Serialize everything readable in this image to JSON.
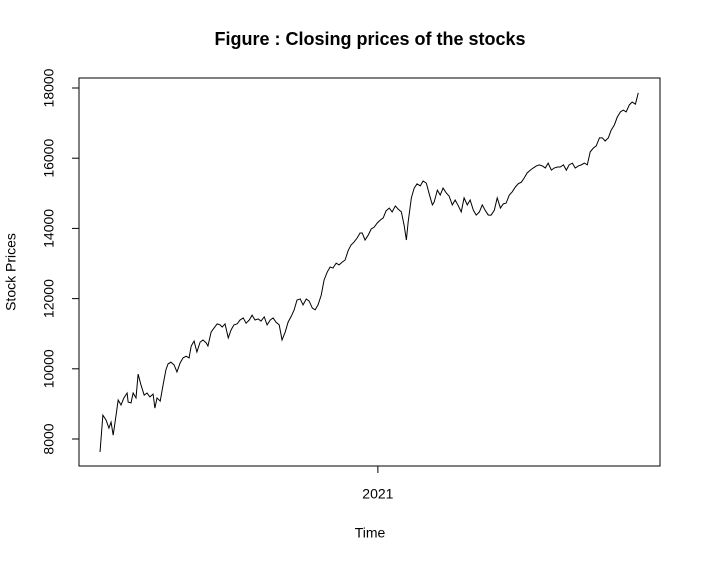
{
  "chart_data": {
    "type": "line",
    "title": "Figure : Closing prices of the stocks",
    "x_label": "Time",
    "y_label": "Stock Prices",
    "x": [
      2020.22,
      2020.228,
      2020.237,
      2020.245,
      2020.251,
      2020.257,
      2020.265,
      2020.271,
      2020.279,
      2020.287,
      2020.296,
      2020.299,
      2020.307,
      2020.313,
      2020.321,
      2020.327,
      2020.335,
      2020.344,
      2020.352,
      2020.36,
      2020.369,
      2020.374,
      2020.38,
      2020.389,
      2020.397,
      2020.405,
      2020.411,
      2020.419,
      2020.428,
      2020.436,
      2020.445,
      2020.453,
      2020.462,
      2020.47,
      2020.476,
      2020.484,
      2020.492,
      2020.501,
      2020.509,
      2020.518,
      2020.523,
      2020.532,
      2020.54,
      2020.549,
      2020.557,
      2020.563,
      2020.571,
      2020.58,
      2020.588,
      2020.596,
      2020.605,
      2020.613,
      2020.622,
      2020.63,
      2020.639,
      2020.647,
      2020.655,
      2020.664,
      2020.672,
      2020.681,
      2020.689,
      2020.698,
      2020.706,
      2020.714,
      2020.723,
      2020.731,
      2020.74,
      2020.748,
      2020.757,
      2020.765,
      2020.773,
      2020.782,
      2020.79,
      2020.799,
      2020.807,
      2020.816,
      2020.824,
      2020.832,
      2020.841,
      2020.849,
      2020.858,
      2020.866,
      2020.874,
      2020.883,
      2020.891,
      2020.9,
      2020.908,
      2020.917,
      2020.925,
      2020.933,
      2020.942,
      2020.95,
      2020.956,
      2020.964,
      2020.973,
      2020.981,
      2020.99,
      2020.998,
      2021.007,
      2021.015,
      2021.023,
      2021.032,
      2021.04,
      2021.049,
      2021.057,
      2021.066,
      2021.074,
      2021.08,
      2021.085,
      2021.094,
      2021.102,
      2021.11,
      2021.119,
      2021.127,
      2021.136,
      2021.145,
      2021.153,
      2021.158,
      2021.167,
      2021.175,
      2021.183,
      2021.192,
      2021.2,
      2021.209,
      2021.217,
      2021.226,
      2021.234,
      2021.242,
      2021.251,
      2021.259,
      2021.268,
      2021.276,
      2021.285,
      2021.293,
      2021.301,
      2021.31,
      2021.318,
      2021.327,
      2021.335,
      2021.344,
      2021.352,
      2021.36,
      2021.369,
      2021.377,
      2021.386,
      2021.394,
      2021.403,
      2021.411,
      2021.419,
      2021.428,
      2021.436,
      2021.445,
      2021.453,
      2021.462,
      2021.47,
      2021.478,
      2021.487,
      2021.495,
      2021.504,
      2021.512,
      2021.521,
      2021.529,
      2021.537,
      2021.546,
      2021.554,
      2021.563,
      2021.571,
      2021.58,
      2021.588,
      2021.596,
      2021.605,
      2021.613,
      2021.622,
      2021.63,
      2021.638,
      2021.647,
      2021.655,
      2021.664,
      2021.672,
      2021.681,
      2021.689,
      2021.697,
      2021.706,
      2021.714,
      2021.723,
      2021.731
    ],
    "values": [
      7630,
      8680,
      8540,
      8310,
      8480,
      8110,
      8680,
      9110,
      8970,
      9170,
      9310,
      9050,
      9030,
      9310,
      9170,
      9850,
      9540,
      9250,
      9310,
      9200,
      9280,
      8880,
      9170,
      9080,
      9540,
      9970,
      10140,
      10190,
      10110,
      9910,
      10170,
      10310,
      10360,
      10310,
      10650,
      10790,
      10480,
      10760,
      10820,
      10740,
      10650,
      11050,
      11160,
      11280,
      11250,
      11190,
      11280,
      10880,
      11110,
      11250,
      11280,
      11390,
      11450,
      11300,
      11390,
      11530,
      11390,
      11420,
      11360,
      11480,
      11250,
      11390,
      11450,
      11330,
      11250,
      10820,
      11050,
      11330,
      11500,
      11680,
      11960,
      11990,
      11820,
      11990,
      11930,
      11730,
      11680,
      11820,
      12100,
      12530,
      12760,
      12900,
      12870,
      13010,
      12960,
      13040,
      13100,
      13380,
      13530,
      13610,
      13730,
      13870,
      13870,
      13670,
      13810,
      13980,
      14040,
      14150,
      14240,
      14300,
      14500,
      14580,
      14470,
      14640,
      14550,
      14470,
      14070,
      13670,
      14180,
      14870,
      15150,
      15270,
      15210,
      15350,
      15290,
      14950,
      14670,
      14750,
      15090,
      14950,
      15150,
      15010,
      14920,
      14670,
      14810,
      14640,
      14470,
      14870,
      14670,
      14810,
      14520,
      14380,
      14470,
      14670,
      14520,
      14380,
      14380,
      14520,
      14870,
      14580,
      14700,
      14720,
      14950,
      15040,
      15180,
      15270,
      15320,
      15440,
      15580,
      15660,
      15720,
      15780,
      15810,
      15780,
      15720,
      15860,
      15660,
      15720,
      15750,
      15750,
      15810,
      15660,
      15810,
      15860,
      15720,
      15780,
      15810,
      15860,
      15810,
      16180,
      16290,
      16350,
      16580,
      16580,
      16490,
      16580,
      16800,
      16950,
      17170,
      17320,
      17370,
      17320,
      17520,
      17600,
      17540,
      17860
    ],
    "color": "#000000",
    "xlim": [
      2020.161,
      2021.792
    ],
    "ylim": [
      7231,
      18285
    ],
    "xticks": [
      2021
    ],
    "yticks": [
      8000,
      10000,
      12000,
      14000,
      16000,
      18000
    ],
    "grid": false
  }
}
